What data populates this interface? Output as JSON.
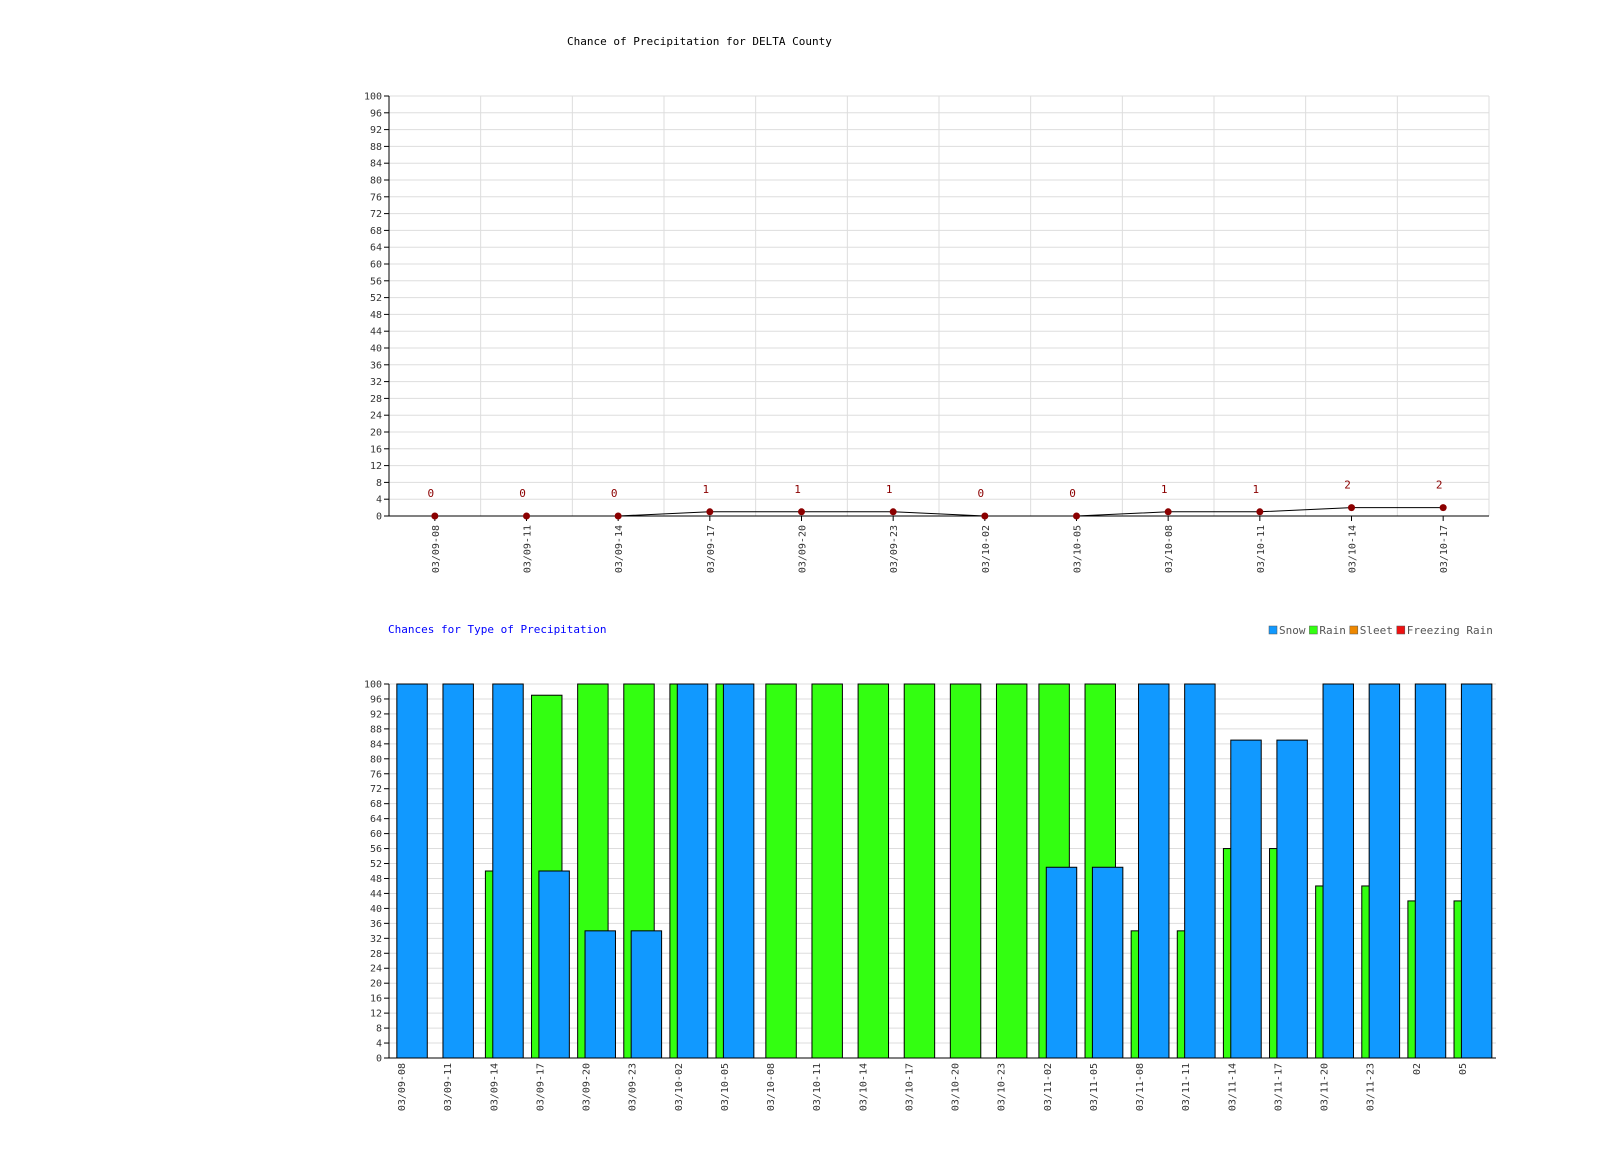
{
  "chart_data": [
    {
      "type": "line",
      "title": "Chance of Precipitation for DELTA County",
      "xlabel": "",
      "ylabel": "",
      "ylim": [
        0,
        100
      ],
      "yticks": [
        0,
        4,
        8,
        12,
        16,
        20,
        24,
        28,
        32,
        36,
        40,
        44,
        48,
        52,
        56,
        60,
        64,
        68,
        72,
        76,
        80,
        84,
        88,
        92,
        96,
        100
      ],
      "categories": [
        "03/09-08",
        "03/09-11",
        "03/09-14",
        "03/09-17",
        "03/09-20",
        "03/09-23",
        "03/10-02",
        "03/10-05",
        "03/10-08",
        "03/10-11",
        "03/10-14",
        "03/10-17"
      ],
      "series": [
        {
          "values": [
            0,
            0,
            0,
            1,
            1,
            1,
            0,
            0,
            1,
            1,
            2,
            2
          ]
        }
      ],
      "data_labels": true,
      "grid": true,
      "colors": {
        "line": "#000000",
        "marker": "#8b0000",
        "label": "#8b0000"
      }
    },
    {
      "type": "bar",
      "title": "Chances for Type of Precipitation",
      "xlabel": "",
      "ylabel": "",
      "ylim": [
        0,
        100
      ],
      "yticks": [
        0,
        4,
        8,
        12,
        16,
        20,
        24,
        28,
        32,
        36,
        40,
        44,
        48,
        52,
        56,
        60,
        64,
        68,
        72,
        76,
        80,
        84,
        88,
        92,
        96,
        100
      ],
      "legend_position": "top-right",
      "categories": [
        "03/09-08",
        "03/09-11",
        "03/09-14",
        "03/09-17",
        "03/09-20",
        "03/09-23",
        "03/10-02",
        "03/10-05",
        "03/10-08",
        "03/10-11",
        "03/10-14",
        "03/10-17",
        "03/10-20",
        "03/10-23",
        "03/11-02",
        "03/11-05",
        "03/11-08",
        "03/11-11",
        "03/11-14",
        "03/11-17",
        "03/11-20",
        "03/11-23",
        "02",
        "05"
      ],
      "series": [
        {
          "name": "Snow",
          "color": "#1199ff",
          "values": [
            100,
            100,
            100,
            50,
            34,
            34,
            100,
            100,
            0,
            0,
            0,
            0,
            0,
            0,
            51,
            51,
            100,
            100,
            85,
            85,
            100,
            100,
            100,
            100
          ]
        },
        {
          "name": "Rain",
          "color": "#33ff11",
          "values": [
            0,
            0,
            50,
            97,
            100,
            100,
            100,
            100,
            100,
            100,
            100,
            100,
            100,
            100,
            100,
            100,
            34,
            34,
            56,
            56,
            46,
            46,
            42,
            42
          ]
        },
        {
          "name": "Sleet",
          "color": "#ee8800",
          "values": [
            0,
            0,
            0,
            0,
            0,
            0,
            0,
            0,
            0,
            0,
            0,
            0,
            0,
            0,
            0,
            0,
            0,
            0,
            0,
            0,
            0,
            0,
            0,
            0
          ]
        },
        {
          "name": "Freezing Rain",
          "color": "#ee1111",
          "values": [
            0,
            0,
            0,
            0,
            0,
            0,
            0,
            0,
            0,
            0,
            0,
            0,
            0,
            0,
            0,
            0,
            0,
            0,
            0,
            0,
            0,
            0,
            0,
            0
          ]
        }
      ],
      "grid": true
    }
  ]
}
